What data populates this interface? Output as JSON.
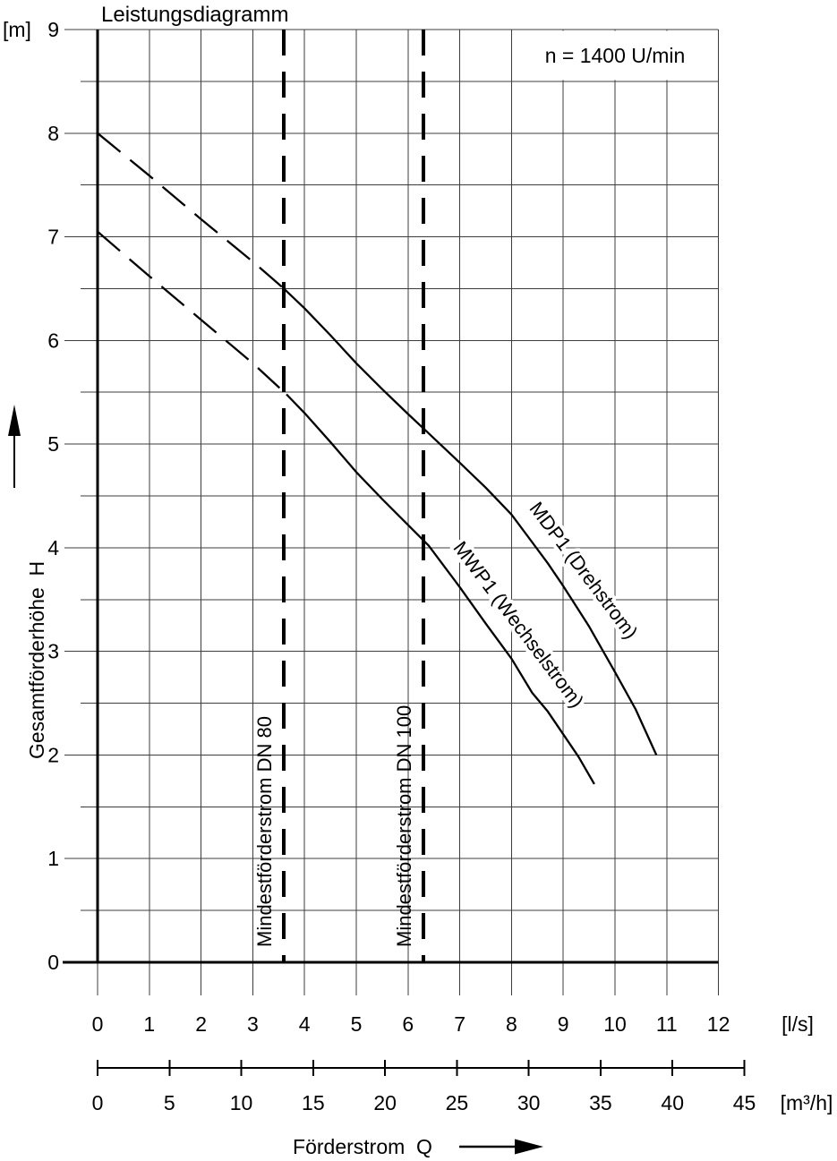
{
  "chart_data": {
    "type": "line",
    "title": "Leistungsdiagramm",
    "annotation": "n = 1400 U/min",
    "x_label": "Förderstrom  Q",
    "y_axis": {
      "unit": "[m]",
      "label": "Gesamtförderhöhe  H",
      "min": 0,
      "max": 9,
      "grid_step": 0.5,
      "ticks": [
        0,
        1,
        2,
        3,
        4,
        5,
        6,
        7,
        8,
        9
      ]
    },
    "x_axis_primary": {
      "unit": "[l/s]",
      "min": 0,
      "max": 12,
      "ticks": [
        0,
        1,
        2,
        3,
        4,
        5,
        6,
        7,
        8,
        9,
        10,
        11,
        12
      ]
    },
    "x_axis_secondary": {
      "unit": "[m³/h]",
      "min": 0,
      "max": 45,
      "m3h_per_lps": 3.6,
      "ticks": [
        0,
        5,
        10,
        15,
        20,
        25,
        30,
        35,
        40,
        45
      ]
    },
    "min_flow_lines": [
      {
        "q": 3.6,
        "label": "Mindestförderstrom DN 80"
      },
      {
        "q": 6.3,
        "label": "Mindestförderstrom DN 100"
      }
    ],
    "series": [
      {
        "name": "MDP1 (Drehstrom)",
        "dash_until_q": 3.6,
        "label": {
          "q": 8.33,
          "h": 4.38,
          "angle": 53
        },
        "points": [
          [
            0,
            8.0
          ],
          [
            1,
            7.59
          ],
          [
            2,
            7.17
          ],
          [
            3,
            6.76
          ],
          [
            3.6,
            6.5
          ],
          [
            4,
            6.31
          ],
          [
            4.5,
            6.05
          ],
          [
            5,
            5.78
          ],
          [
            5.5,
            5.53
          ],
          [
            6,
            5.29
          ],
          [
            6.3,
            5.15
          ],
          [
            7,
            4.82
          ],
          [
            7.5,
            4.58
          ],
          [
            8,
            4.32
          ],
          [
            8.3,
            4.12
          ],
          [
            8.7,
            3.85
          ],
          [
            9,
            3.63
          ],
          [
            9.5,
            3.24
          ],
          [
            10,
            2.8
          ],
          [
            10.4,
            2.44
          ],
          [
            10.8,
            2.0
          ]
        ]
      },
      {
        "name": "MWP1 (Wechselstrom)",
        "dash_until_q": 3.65,
        "label": {
          "q": 6.86,
          "h": 4.0,
          "angle": 53
        },
        "points": [
          [
            0,
            7.05
          ],
          [
            1,
            6.62
          ],
          [
            2,
            6.2
          ],
          [
            3,
            5.78
          ],
          [
            3.65,
            5.48
          ],
          [
            4,
            5.3
          ],
          [
            4.5,
            5.02
          ],
          [
            5,
            4.73
          ],
          [
            5.5,
            4.47
          ],
          [
            6,
            4.22
          ],
          [
            6.4,
            4.02
          ],
          [
            7,
            3.62
          ],
          [
            7.5,
            3.27
          ],
          [
            8,
            2.93
          ],
          [
            8.4,
            2.6
          ],
          [
            8.7,
            2.42
          ],
          [
            9,
            2.2
          ],
          [
            9.3,
            1.98
          ],
          [
            9.6,
            1.72
          ]
        ]
      }
    ],
    "colors": {
      "ink": "#000000",
      "grid": "#3d3d3d",
      "background": "#ffffff"
    }
  }
}
